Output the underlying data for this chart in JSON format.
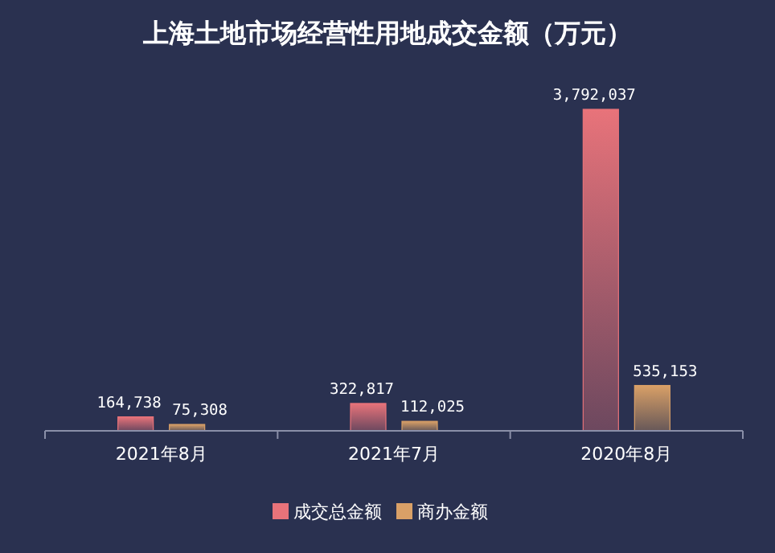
{
  "chart_data": {
    "type": "bar",
    "title": "上海土地市场经营性用地成交金额（万元）",
    "categories": [
      "2021年8月",
      "2021年7月",
      "2020年8月"
    ],
    "series": [
      {
        "name": "成交总金额",
        "color": "#e8737a",
        "values": [
          164738,
          322817,
          3792037
        ],
        "value_labels": [
          "164,738",
          "322,817",
          "3,792,037"
        ]
      },
      {
        "name": "商办金额",
        "color": "#d9a067",
        "values": [
          75308,
          112025,
          535153
        ],
        "value_labels": [
          "75,308",
          "112,025",
          "535,153"
        ]
      }
    ],
    "legend": "bottom",
    "grid": false
  }
}
